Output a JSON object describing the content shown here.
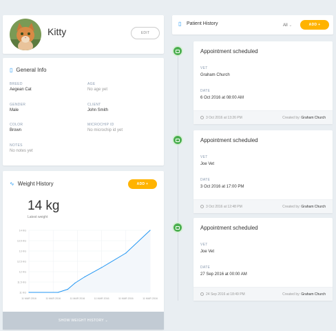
{
  "pet": {
    "name": "Kitty",
    "edit_label": "EDIT"
  },
  "general_info": {
    "title": "General Info",
    "fields": {
      "breed": {
        "label": "BREED",
        "value": "Aegean Cat"
      },
      "age": {
        "label": "AGE",
        "value": "No age yet"
      },
      "gender": {
        "label": "GENDER",
        "value": "Male"
      },
      "client": {
        "label": "CLIENT",
        "value": "John Smith"
      },
      "color": {
        "label": "COLOR",
        "value": "Brown"
      },
      "microchip": {
        "label": "MICROCHIP ID",
        "value": "No microchip id yet"
      },
      "notes": {
        "label": "NOTES",
        "value": "No notes yet"
      }
    }
  },
  "weight": {
    "title": "Weight History",
    "add_label": "ADD +",
    "latest_value": "14 kg",
    "latest_label": "Latest weight",
    "show_history_label": "SHOW WEIGHT HISTORY ⌄"
  },
  "chart_data": {
    "type": "area",
    "y_ticks": [
      "14 KG",
      "13.5 KG",
      "13 KG",
      "12.5 KG",
      "12 KG",
      "11.5 KG",
      "11 KG"
    ],
    "x_ticks": [
      "11 MAR 2016",
      "11 MAR 2016",
      "11 MAR 2016",
      "11 MAR 2016",
      "11 MAR 2016",
      "11 MAR 2016"
    ],
    "ylim": [
      11,
      14
    ],
    "series": [
      {
        "x": [
          0,
          1.2,
          1.6,
          1.9,
          2.3,
          3.0,
          4.0,
          5.0
        ],
        "values": [
          11,
          11,
          11.15,
          11.45,
          11.75,
          12.2,
          12.9,
          14.0
        ]
      }
    ],
    "grid": true,
    "color": "#2196f3"
  },
  "history": {
    "title": "Patient History",
    "filter_value": "All",
    "add_label": "ADD +",
    "appointments": [
      {
        "title": "Appointment scheduled",
        "vet_label": "VET",
        "vet": "Graham Church",
        "date_label": "DATE",
        "date": "6 Oct 2016 at 08:00 AM",
        "created_at": "3 Oct 2016 at 13:26 PM",
        "created_by_label": "Created by:",
        "created_by": "Graham Church"
      },
      {
        "title": "Appointment scheduled",
        "vet_label": "VET",
        "vet": "Joe Vet",
        "date_label": "DATE",
        "date": "3 Oct 2016 at 17:00 PM",
        "created_at": "3 Oct 2016 at 12:48 PM",
        "created_by_label": "Created by:",
        "created_by": "Graham Church"
      },
      {
        "title": "Appointment scheduled",
        "vet_label": "VET",
        "vet": "Joe Vet",
        "date_label": "DATE",
        "date": "27 Sep 2016 at 00:00 AM",
        "created_at": "24 Sep 2016 at 18:49 PM",
        "created_by_label": "Created by:",
        "created_by": "Graham Church"
      }
    ]
  },
  "colors": {
    "accent": "#ffb300",
    "primary": "#2196f3",
    "success": "#4caf50",
    "background": "#e9eef2"
  }
}
